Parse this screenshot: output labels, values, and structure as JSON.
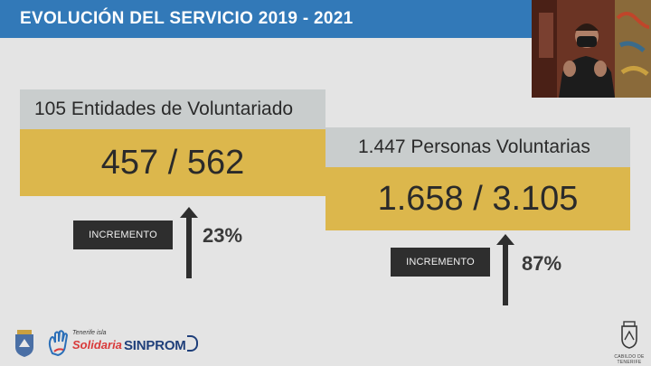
{
  "header": {
    "title": "EVOLUCIÓN DEL SERVICIO 2019 - 2021"
  },
  "cards": [
    {
      "header": "105 Entidades de Voluntariado",
      "value": "457 / 562",
      "increment_label": "INCREMENTO",
      "increment_pct": "23%"
    },
    {
      "header": "1.447 Personas Voluntarias",
      "value": "1.658 / 3.105",
      "increment_label": "INCREMENTO",
      "increment_pct": "87%"
    }
  ],
  "footer": {
    "logo_2": {
      "line1": "Tenerife isla",
      "line2": "Solidaria"
    },
    "logo_3": {
      "text": "SINPROM"
    },
    "logo_4": {
      "text": "CABILDO DE TENERIFE"
    }
  },
  "colors": {
    "title_bar": "#3279b8",
    "card_header": "#c9cdcd",
    "card_value": "#dcb74c",
    "label_bg": "#2e2e2e",
    "background": "#e4e4e4"
  }
}
